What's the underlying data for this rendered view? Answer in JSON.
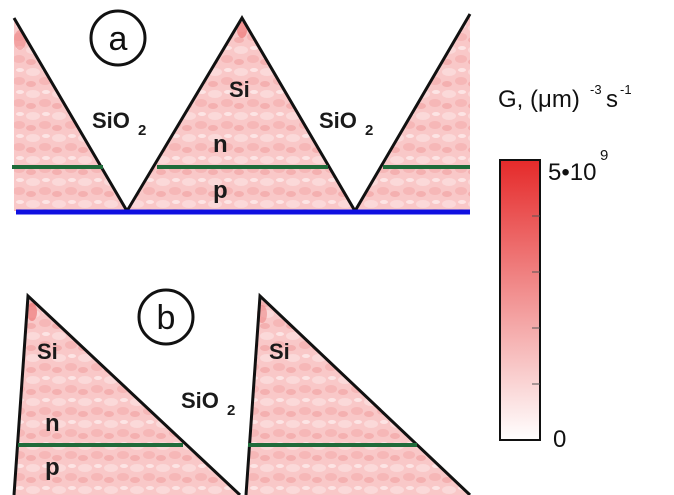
{
  "panel_a": {
    "letter": "a",
    "labels": {
      "si": "Si",
      "sio2_left": "SiO",
      "sio2_right": "SiO",
      "subscript": "2",
      "n": "n",
      "p": "p"
    }
  },
  "panel_b": {
    "letter": "b",
    "labels": {
      "si_left": "Si",
      "si_right": "Si",
      "sio2": "SiO",
      "subscript": "2",
      "n": "n",
      "p": "p"
    }
  },
  "colorbar": {
    "title_prefix": "G, (",
    "title_mu": "μ",
    "title_m": "m)",
    "title_exp1": "-3",
    "title_s": "s",
    "title_exp2": "-1",
    "max_label_base": "5•10",
    "max_label_exp": "9",
    "min_label": "0",
    "color_max": "#e52a2a",
    "color_min": "#ffffff"
  },
  "colors": {
    "outline": "#111111",
    "junction_line": "#1f6b3a",
    "contact_line": "#1010e0",
    "fill_light": "#fbdada",
    "fill_mid": "#f5b0b0"
  }
}
